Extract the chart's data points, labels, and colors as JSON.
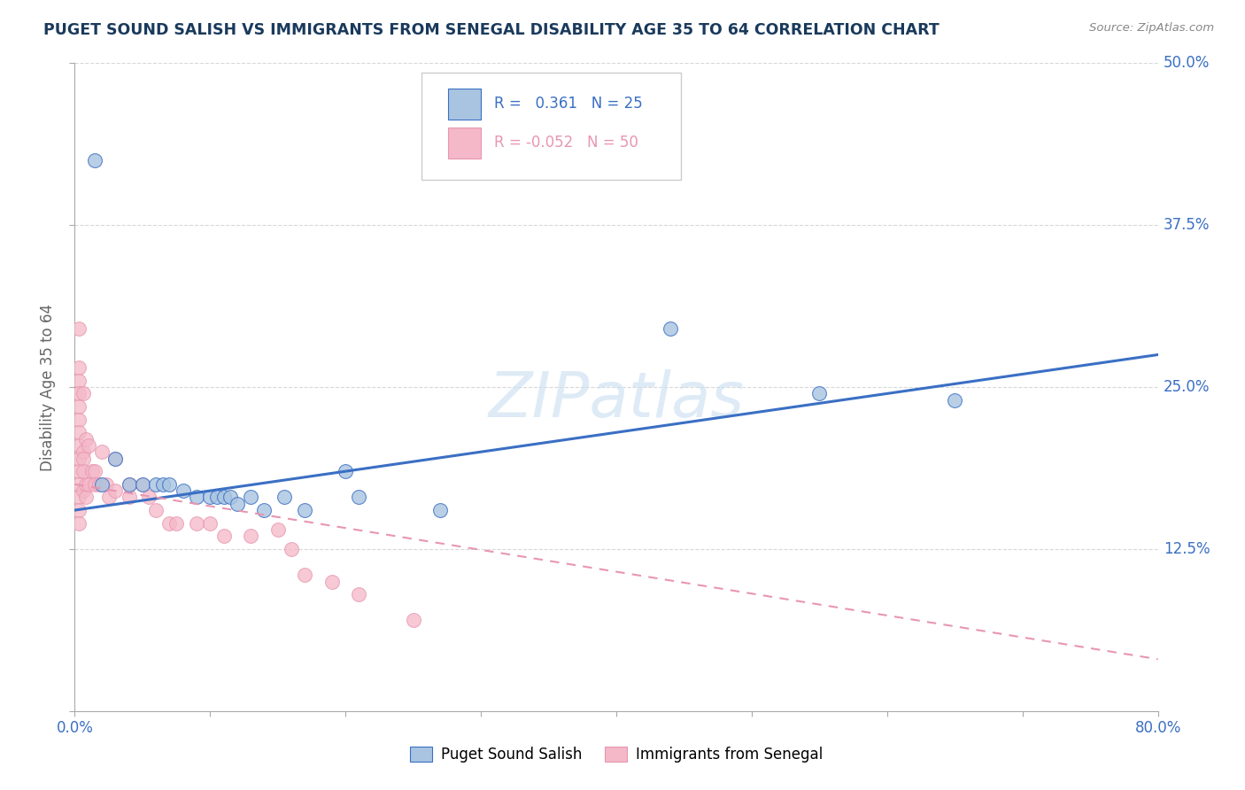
{
  "title": "PUGET SOUND SALISH VS IMMIGRANTS FROM SENEGAL DISABILITY AGE 35 TO 64 CORRELATION CHART",
  "source": "Source: ZipAtlas.com",
  "ylabel": "Disability Age 35 to 64",
  "xmin": 0.0,
  "xmax": 0.8,
  "ymin": 0.0,
  "ymax": 0.5,
  "xticks": [
    0.0,
    0.1,
    0.2,
    0.3,
    0.4,
    0.5,
    0.6,
    0.7,
    0.8
  ],
  "yticks": [
    0.0,
    0.125,
    0.25,
    0.375,
    0.5
  ],
  "ytick_labels": [
    "",
    "12.5%",
    "25.0%",
    "37.5%",
    "50.0%"
  ],
  "xtick_labels_show": [
    "0.0%",
    "80.0%"
  ],
  "blue_R": 0.361,
  "blue_N": 25,
  "pink_R": -0.052,
  "pink_N": 50,
  "blue_color": "#a8c4e0",
  "pink_color": "#f4b8c8",
  "blue_line_color": "#3a6fc4",
  "pink_line_color": "#e896b0",
  "pink_edge_color": "#e896b0",
  "watermark_text": "ZIPatlas",
  "blue_scatter_x": [
    0.015,
    0.02,
    0.03,
    0.04,
    0.05,
    0.06,
    0.065,
    0.07,
    0.08,
    0.09,
    0.1,
    0.105,
    0.11,
    0.115,
    0.12,
    0.13,
    0.14,
    0.155,
    0.17,
    0.2,
    0.21,
    0.27,
    0.44,
    0.55,
    0.65
  ],
  "blue_scatter_y": [
    0.425,
    0.175,
    0.195,
    0.175,
    0.175,
    0.175,
    0.175,
    0.175,
    0.17,
    0.165,
    0.165,
    0.165,
    0.165,
    0.165,
    0.16,
    0.165,
    0.155,
    0.165,
    0.155,
    0.185,
    0.165,
    0.155,
    0.295,
    0.245,
    0.24
  ],
  "pink_scatter_x": [
    0.003,
    0.003,
    0.003,
    0.003,
    0.003,
    0.003,
    0.003,
    0.003,
    0.003,
    0.003,
    0.003,
    0.003,
    0.003,
    0.003,
    0.006,
    0.006,
    0.006,
    0.006,
    0.006,
    0.008,
    0.008,
    0.008,
    0.01,
    0.01,
    0.013,
    0.015,
    0.015,
    0.018,
    0.02,
    0.023,
    0.025,
    0.03,
    0.03,
    0.04,
    0.04,
    0.05,
    0.055,
    0.06,
    0.07,
    0.075,
    0.09,
    0.1,
    0.11,
    0.13,
    0.15,
    0.16,
    0.17,
    0.19,
    0.21,
    0.25
  ],
  "pink_scatter_y": [
    0.295,
    0.265,
    0.255,
    0.245,
    0.235,
    0.225,
    0.215,
    0.205,
    0.195,
    0.185,
    0.175,
    0.165,
    0.155,
    0.145,
    0.2,
    0.195,
    0.185,
    0.17,
    0.245,
    0.21,
    0.175,
    0.165,
    0.205,
    0.175,
    0.185,
    0.185,
    0.175,
    0.175,
    0.2,
    0.175,
    0.165,
    0.195,
    0.17,
    0.175,
    0.165,
    0.175,
    0.165,
    0.155,
    0.145,
    0.145,
    0.145,
    0.145,
    0.135,
    0.135,
    0.14,
    0.125,
    0.105,
    0.1,
    0.09,
    0.07
  ],
  "legend_label_blue": "Puget Sound Salish",
  "legend_label_pink": "Immigrants from Senegal",
  "title_color": "#1a3a5c",
  "axis_color": "#aaaaaa",
  "grid_color": "#d8d8d8",
  "blue_trend_x0": 0.0,
  "blue_trend_x1": 0.8,
  "blue_trend_y0": 0.155,
  "blue_trend_y1": 0.275,
  "pink_trend_x0": 0.0,
  "pink_trend_x1": 0.8,
  "pink_trend_y0": 0.175,
  "pink_trend_y1": 0.04
}
